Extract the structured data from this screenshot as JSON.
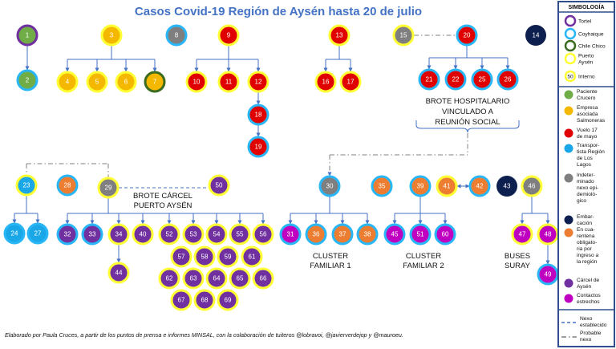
{
  "title": "Casos Covid-19 Región de Aysén hasta 20 de julio",
  "footer": "Elaborado por Paula Cruces, a partir de los puntos de prensa e informes MINSAL, con la colaboración de tuiteros @lobravoi, @javierverdejop y @mauroeu.",
  "group_labels": {
    "brote_hospitalario": [
      "BROTE HOSPITALARIO",
      "VINCULADO A",
      "REUNIÓN SOCIAL"
    ],
    "brote_carcel": [
      "BROTE CÁRCEL",
      "PUERTO AYSÉN"
    ],
    "cluster_1": [
      "CLUSTER",
      "FAMILIAR 1"
    ],
    "cluster_2": [
      "CLUSTER",
      "FAMILIAR 2"
    ],
    "buses": [
      "BUSES",
      "SURAY"
    ]
  },
  "colors": {
    "crucero": "#70ad47",
    "salmonera": "#f5b800",
    "vuelo": "#e00000",
    "transportista": "#1aa7e8",
    "indeterminado": "#7f7f7f",
    "embarcacion": "#0d1f4f",
    "cuarentena": "#ed7d31",
    "carcel": "#7030a0",
    "contactos": "#c000c0",
    "ring_tortel": "#7030a0",
    "ring_coyhaique": "#29b6f6",
    "ring_chilechico": "#3a6b1f",
    "ring_puertoaysen": "#ffff33",
    "ring_interno": "#ffff33"
  },
  "nodes": [
    {
      "id": "1",
      "fill": "crucero",
      "ring": "tortel"
    },
    {
      "id": "2",
      "fill": "crucero",
      "ring": "coyhaique"
    },
    {
      "id": "3",
      "fill": "salmonera",
      "ring": "puertoaysen"
    },
    {
      "id": "4",
      "fill": "salmonera",
      "ring": "puertoaysen"
    },
    {
      "id": "5",
      "fill": "salmonera",
      "ring": "puertoaysen"
    },
    {
      "id": "6",
      "fill": "salmonera",
      "ring": "puertoaysen"
    },
    {
      "id": "7",
      "fill": "salmonera",
      "ring": "chilechico"
    },
    {
      "id": "8",
      "fill": "indeterminado",
      "ring": "coyhaique"
    },
    {
      "id": "9",
      "fill": "vuelo",
      "ring": "puertoaysen"
    },
    {
      "id": "10",
      "fill": "vuelo",
      "ring": "puertoaysen"
    },
    {
      "id": "11",
      "fill": "vuelo",
      "ring": "puertoaysen"
    },
    {
      "id": "12",
      "fill": "vuelo",
      "ring": "puertoaysen"
    },
    {
      "id": "18",
      "fill": "vuelo",
      "ring": "coyhaique"
    },
    {
      "id": "19",
      "fill": "vuelo",
      "ring": "coyhaique"
    },
    {
      "id": "13",
      "fill": "vuelo",
      "ring": "puertoaysen"
    },
    {
      "id": "16",
      "fill": "vuelo",
      "ring": "puertoaysen"
    },
    {
      "id": "17",
      "fill": "vuelo",
      "ring": "puertoaysen"
    },
    {
      "id": "15",
      "fill": "indeterminado",
      "ring": "puertoaysen"
    },
    {
      "id": "20",
      "fill": "vuelo",
      "ring": "coyhaique"
    },
    {
      "id": "21",
      "fill": "vuelo",
      "ring": "coyhaique"
    },
    {
      "id": "22",
      "fill": "vuelo",
      "ring": "coyhaique"
    },
    {
      "id": "25",
      "fill": "vuelo",
      "ring": "coyhaique"
    },
    {
      "id": "26",
      "fill": "vuelo",
      "ring": "coyhaique"
    },
    {
      "id": "14",
      "fill": "embarcacion",
      "ring": "none"
    },
    {
      "id": "23",
      "fill": "transportista",
      "ring": "puertoaysen"
    },
    {
      "id": "24",
      "fill": "transportista",
      "ring": "coyhaique"
    },
    {
      "id": "27",
      "fill": "transportista",
      "ring": "coyhaique"
    },
    {
      "id": "28",
      "fill": "cuarentena",
      "ring": "coyhaique"
    },
    {
      "id": "29",
      "fill": "indeterminado",
      "ring": "puertoaysen"
    },
    {
      "id": "32",
      "fill": "carcel",
      "ring": "coyhaique"
    },
    {
      "id": "33",
      "fill": "carcel",
      "ring": "coyhaique"
    },
    {
      "id": "34",
      "fill": "carcel",
      "ring": "puertoaysen"
    },
    {
      "id": "40",
      "fill": "carcel",
      "ring": "puertoaysen"
    },
    {
      "id": "44",
      "fill": "carcel",
      "ring": "puertoaysen"
    },
    {
      "id": "50",
      "fill": "carcel",
      "ring": "puertoaysen"
    },
    {
      "id": "52",
      "fill": "carcel",
      "ring": "puertoaysen"
    },
    {
      "id": "53",
      "fill": "carcel",
      "ring": "puertoaysen"
    },
    {
      "id": "54",
      "fill": "carcel",
      "ring": "puertoaysen"
    },
    {
      "id": "55",
      "fill": "carcel",
      "ring": "puertoaysen"
    },
    {
      "id": "56",
      "fill": "carcel",
      "ring": "puertoaysen"
    },
    {
      "id": "57",
      "fill": "carcel",
      "ring": "puertoaysen"
    },
    {
      "id": "58",
      "fill": "carcel",
      "ring": "puertoaysen"
    },
    {
      "id": "59",
      "fill": "carcel",
      "ring": "puertoaysen"
    },
    {
      "id": "61",
      "fill": "carcel",
      "ring": "puertoaysen"
    },
    {
      "id": "62",
      "fill": "carcel",
      "ring": "puertoaysen"
    },
    {
      "id": "63",
      "fill": "carcel",
      "ring": "puertoaysen"
    },
    {
      "id": "64",
      "fill": "carcel",
      "ring": "puertoaysen"
    },
    {
      "id": "65",
      "fill": "carcel",
      "ring": "puertoaysen"
    },
    {
      "id": "66",
      "fill": "carcel",
      "ring": "puertoaysen"
    },
    {
      "id": "67",
      "fill": "carcel",
      "ring": "puertoaysen"
    },
    {
      "id": "68",
      "fill": "carcel",
      "ring": "puertoaysen"
    },
    {
      "id": "69",
      "fill": "carcel",
      "ring": "puertoaysen"
    },
    {
      "id": "30",
      "fill": "indeterminado",
      "ring": "coyhaique"
    },
    {
      "id": "31",
      "fill": "contactos",
      "ring": "coyhaique"
    },
    {
      "id": "36",
      "fill": "cuarentena",
      "ring": "coyhaique"
    },
    {
      "id": "37",
      "fill": "cuarentena",
      "ring": "coyhaique"
    },
    {
      "id": "38",
      "fill": "cuarentena",
      "ring": "coyhaique"
    },
    {
      "id": "35",
      "fill": "cuarentena",
      "ring": "coyhaique"
    },
    {
      "id": "39",
      "fill": "cuarentena",
      "ring": "coyhaique"
    },
    {
      "id": "45",
      "fill": "contactos",
      "ring": "coyhaique"
    },
    {
      "id": "51",
      "fill": "contactos",
      "ring": "coyhaique"
    },
    {
      "id": "60",
      "fill": "contactos",
      "ring": "coyhaique"
    },
    {
      "id": "41",
      "fill": "cuarentena",
      "ring": "puertoaysen"
    },
    {
      "id": "42",
      "fill": "cuarentena",
      "ring": "coyhaique"
    },
    {
      "id": "43",
      "fill": "embarcacion",
      "ring": "none"
    },
    {
      "id": "46",
      "fill": "indeterminado",
      "ring": "puertoaysen"
    },
    {
      "id": "47",
      "fill": "contactos",
      "ring": "puertoaysen"
    },
    {
      "id": "48",
      "fill": "contactos",
      "ring": "puertoaysen"
    },
    {
      "id": "49",
      "fill": "contactos",
      "ring": "coyhaique"
    }
  ],
  "legend": {
    "title": "SIMBOLOGÍA",
    "rings": [
      {
        "ring": "tortel",
        "label": "Tortel"
      },
      {
        "ring": "coyhaique",
        "label": "Coyhaique"
      },
      {
        "ring": "chilechico",
        "label": "Chile Chico"
      },
      {
        "ring": "puertoaysen",
        "label": "Puerto Aysén"
      },
      {
        "ring": "interno",
        "label": "Interno",
        "badge": "50"
      }
    ],
    "fills": [
      {
        "fill": "crucero",
        "label": "Paciente Crucero"
      },
      {
        "fill": "salmonera",
        "label": "Empresa asociada Salmoneras"
      },
      {
        "fill": "vuelo",
        "label": "Vuelo 17 de mayo"
      },
      {
        "fill": "transportista",
        "label": "Transportista Región de Los Lagos"
      },
      {
        "fill": "indeterminado",
        "label": "Indeterminado nexo epidemiológico"
      },
      {
        "fill": "embarcacion",
        "label": "Embarcación"
      },
      {
        "fill": "cuarentena",
        "label": "En cuarentena obligatoria por ingreso a la región"
      },
      {
        "fill": "carcel",
        "label": "Cárcel de Aysén"
      },
      {
        "fill": "contactos",
        "label": "Contactos estrechos"
      }
    ],
    "lines": [
      {
        "style": "dashed",
        "label": "Nexo establecido"
      },
      {
        "style": "dashdot",
        "label": "Probable nexo"
      }
    ]
  }
}
